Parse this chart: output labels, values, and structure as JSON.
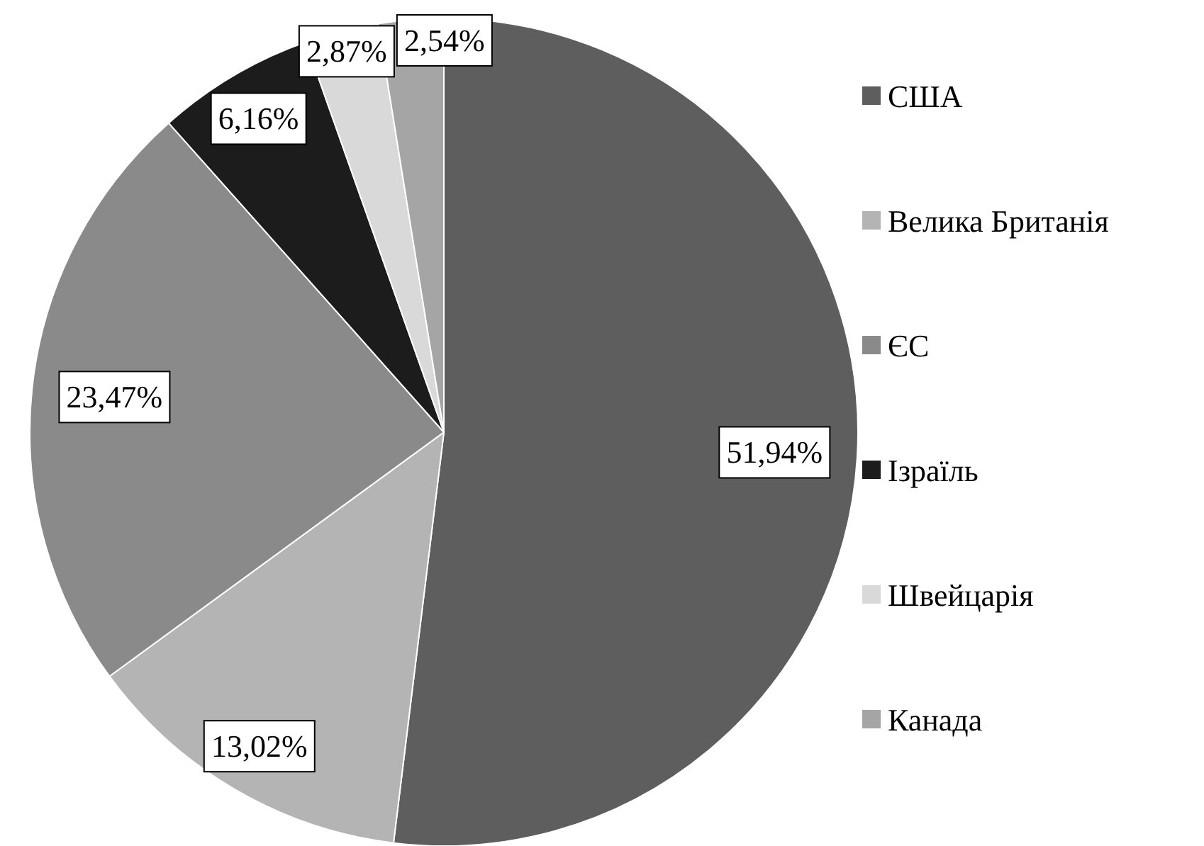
{
  "chart_data": {
    "type": "pie",
    "categories": [
      "США",
      "Велика Британія",
      "ЄС",
      "Ізраїль",
      "Швейцарія",
      "Канада"
    ],
    "values": [
      51.94,
      13.02,
      23.47,
      6.16,
      2.87,
      2.54
    ],
    "value_labels": [
      "51,94%",
      "13,02%",
      "23,47%",
      "6,16%",
      "2,87%",
      "2,54%"
    ],
    "colors": [
      "#5e5e5e",
      "#b4b4b4",
      "#8a8a8a",
      "#1c1c1c",
      "#d9d9d9",
      "#a5a5a5"
    ],
    "legend": "right"
  }
}
